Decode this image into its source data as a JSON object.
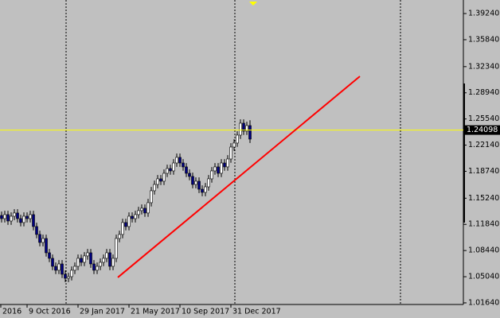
{
  "chart_data": {
    "type": "candlestick",
    "up_color": "#ffffff",
    "down_color": "#000080",
    "background": "#c0c0c0",
    "open": [
      1.13,
      1.1259,
      1.1311,
      1.1228,
      1.129,
      1.1332,
      1.1259,
      1.1208,
      1.129,
      1.1259,
      1.1311,
      1.1156,
      1.1053,
      1.0949,
      1.1001,
      1.0815,
      1.0743,
      1.0639,
      1.0588,
      1.067,
      1.0536,
      1.0484,
      1.0505,
      1.0588,
      1.0639,
      1.0743,
      1.0691,
      1.0774,
      1.0815,
      1.067,
      1.0588,
      1.0639,
      1.0691,
      1.0743,
      1.0815,
      1.0639,
      1.0743,
      1.1001,
      1.1053,
      1.1208,
      1.1156,
      1.129,
      1.1259,
      1.1311,
      1.1363,
      1.1394,
      1.1332,
      1.1466,
      1.1621,
      1.1703,
      1.1776,
      1.1745,
      1.1848,
      1.191,
      1.1879,
      1.1982,
      1.2055,
      1.1982,
      1.1931,
      1.1848,
      1.1807,
      1.1703,
      1.1745,
      1.1641,
      1.16,
      1.1672,
      1.1776,
      1.1879,
      1.1931,
      1.1848,
      1.1982,
      1.1931,
      1.2034,
      1.2189,
      1.2241,
      1.2344,
      1.2499,
      1.2396,
      1.2468
    ],
    "high": [
      1.135,
      1.1361,
      1.1361,
      1.134,
      1.1382,
      1.1382,
      1.1309,
      1.134,
      1.134,
      1.1361,
      1.1361,
      1.1206,
      1.1103,
      1.1051,
      1.1051,
      1.0865,
      1.0793,
      1.0689,
      1.072,
      1.072,
      1.0586,
      1.0555,
      1.0638,
      1.0689,
      1.0793,
      1.0793,
      1.0824,
      1.0865,
      1.0865,
      1.072,
      1.0689,
      1.0741,
      1.0793,
      1.0865,
      1.0865,
      1.0793,
      1.1051,
      1.1103,
      1.1258,
      1.1258,
      1.134,
      1.134,
      1.1361,
      1.1413,
      1.1444,
      1.1444,
      1.1516,
      1.1671,
      1.1753,
      1.1826,
      1.1826,
      1.1898,
      1.196,
      1.196,
      1.2032,
      1.2105,
      1.2105,
      1.2032,
      1.1981,
      1.1898,
      1.1857,
      1.1795,
      1.1795,
      1.1691,
      1.1722,
      1.1826,
      1.1929,
      1.1981,
      1.1981,
      1.2032,
      1.2032,
      1.2084,
      1.2239,
      1.2291,
      1.2394,
      1.2549,
      1.2549,
      1.2518,
      1.2537
    ],
    "low": [
      1.1209,
      1.1209,
      1.1178,
      1.1178,
      1.124,
      1.1209,
      1.1158,
      1.1158,
      1.1209,
      1.1209,
      1.1106,
      1.1003,
      1.0899,
      1.0899,
      1.0765,
      1.0693,
      1.0589,
      1.0538,
      1.0538,
      1.0486,
      1.0434,
      1.0434,
      1.0455,
      1.0538,
      1.0589,
      1.0641,
      1.0641,
      1.0724,
      1.062,
      1.0538,
      1.0538,
      1.0589,
      1.0641,
      1.0693,
      1.0589,
      1.0589,
      1.0693,
      1.0951,
      1.1003,
      1.1106,
      1.1106,
      1.1209,
      1.1209,
      1.1261,
      1.1313,
      1.1282,
      1.1282,
      1.1416,
      1.1571,
      1.1653,
      1.1695,
      1.1695,
      1.1798,
      1.1829,
      1.1829,
      1.1932,
      1.1932,
      1.1881,
      1.1798,
      1.1757,
      1.1653,
      1.1653,
      1.1591,
      1.155,
      1.155,
      1.1622,
      1.1726,
      1.1829,
      1.1798,
      1.1798,
      1.1881,
      1.1881,
      1.1984,
      1.2139,
      1.2191,
      1.2294,
      1.2346,
      1.2346,
      1.2242
    ],
    "close": [
      1.1259,
      1.1311,
      1.1228,
      1.129,
      1.1332,
      1.1259,
      1.1208,
      1.129,
      1.1259,
      1.1311,
      1.1156,
      1.1053,
      1.0949,
      1.1001,
      1.0815,
      1.0743,
      1.0639,
      1.0588,
      1.067,
      1.0536,
      1.0484,
      1.0505,
      1.0588,
      1.0639,
      1.0743,
      1.0691,
      1.0774,
      1.0815,
      1.067,
      1.0588,
      1.0639,
      1.0691,
      1.0743,
      1.0815,
      1.0639,
      1.0743,
      1.1001,
      1.1053,
      1.1208,
      1.1156,
      1.129,
      1.1259,
      1.1311,
      1.1363,
      1.1394,
      1.1332,
      1.1466,
      1.1621,
      1.1703,
      1.1776,
      1.1745,
      1.1848,
      1.191,
      1.1879,
      1.1982,
      1.2055,
      1.1982,
      1.1931,
      1.1848,
      1.1807,
      1.1703,
      1.1745,
      1.1641,
      1.16,
      1.1672,
      1.1776,
      1.1879,
      1.1931,
      1.1848,
      1.1982,
      1.1931,
      1.2034,
      1.2189,
      1.2241,
      1.2344,
      1.2499,
      1.2396,
      1.2468,
      1.2292
    ],
    "ylim": [
      1.0143,
      1.41
    ],
    "yticks": [
      {
        "value": 1.3924,
        "label": "1.39240"
      },
      {
        "value": 1.3584,
        "label": "1.35840"
      },
      {
        "value": 1.3234,
        "label": "1.32340"
      },
      {
        "value": 1.2894,
        "label": "1.28940"
      },
      {
        "value": 1.2554,
        "label": "1.25540"
      },
      {
        "value": 1.2214,
        "label": "1.22140"
      },
      {
        "value": 1.1874,
        "label": "1.18740"
      },
      {
        "value": 1.1524,
        "label": "1.15240"
      },
      {
        "value": 1.1184,
        "label": "1.11840"
      },
      {
        "value": 1.0844,
        "label": "1.08440"
      },
      {
        "value": 1.0504,
        "label": "1.05040"
      },
      {
        "value": 1.0164,
        "label": "1.01640"
      }
    ],
    "xticks": [
      {
        "value": -0.25,
        "label": "2016"
      },
      {
        "value": 8,
        "label": "9 Oct 2016"
      },
      {
        "value": 24,
        "label": "29 Jan 2017"
      },
      {
        "value": 40,
        "label": "21 May 2017"
      },
      {
        "value": 56,
        "label": "10 Sep 2017"
      },
      {
        "value": 72,
        "label": "31 Dec 2017"
      }
    ],
    "current_price": {
      "value": 1.24098,
      "label": "1.24098",
      "color": "#ffff00"
    },
    "trendline": {
      "color": "#ff0000",
      "x": [
        36.5,
        112.5
      ],
      "y": [
        1.0495,
        1.3108
      ]
    }
  }
}
